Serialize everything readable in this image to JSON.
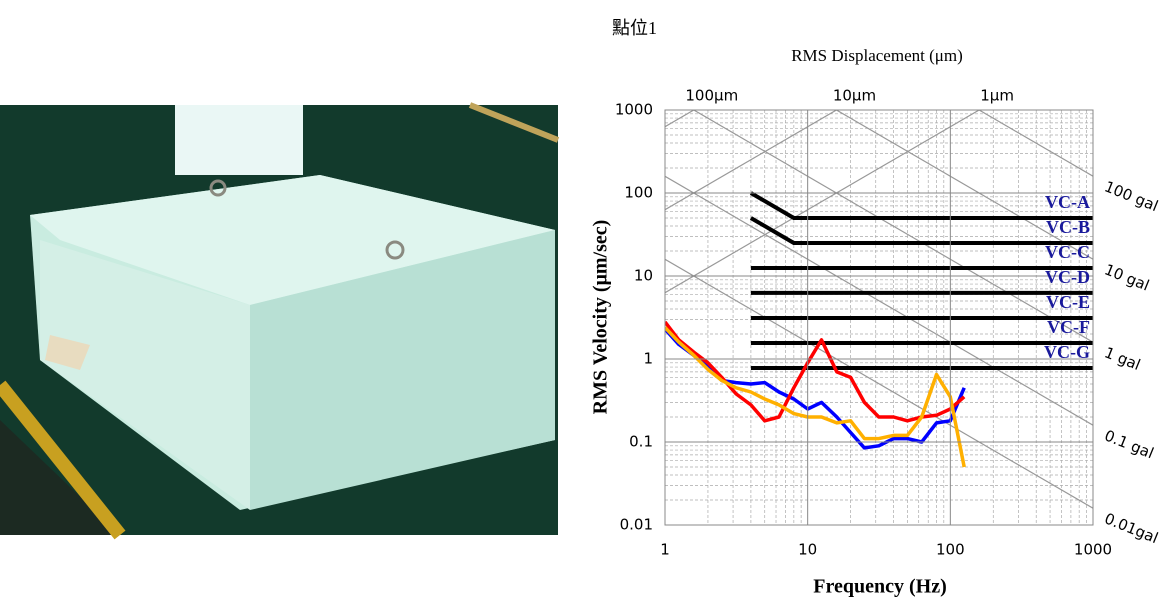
{
  "chart_data": {
    "type": "line",
    "title": "點位1",
    "top_axis_label": "RMS Displacement (μm)",
    "xlabel": "Frequency (Hz)",
    "ylabel": "RMS Velocity (μm/sec)",
    "log_x": true,
    "log_y": true,
    "grid": true,
    "xlim": [
      1,
      1000
    ],
    "ylim": [
      0.01,
      1000
    ],
    "xticks": [
      1,
      10,
      100,
      1000
    ],
    "yticks": [
      0.01,
      0.1,
      1,
      10,
      100,
      1000
    ],
    "displacement_ticks": [
      {
        "value": 100,
        "label": "100μm"
      },
      {
        "value": 10,
        "label": "10μm"
      },
      {
        "value": 1,
        "label": "1μm"
      }
    ],
    "acceleration_ticks": [
      {
        "value": 100,
        "label": "100 gal"
      },
      {
        "value": 10,
        "label": "10 gal"
      },
      {
        "value": 1,
        "label": "1 gal"
      },
      {
        "value": 0.1,
        "label": "0.1 gal"
      },
      {
        "value": 0.01,
        "label": "0.01gal"
      }
    ],
    "criteria": [
      {
        "name": "VC-A",
        "color": "#000000",
        "x": [
          4,
          8,
          1000
        ],
        "values": [
          100,
          50,
          50
        ]
      },
      {
        "name": "VC-B",
        "color": "#000000",
        "x": [
          4,
          8,
          1000
        ],
        "values": [
          50,
          25,
          25
        ]
      },
      {
        "name": "VC-C",
        "color": "#000000",
        "x": [
          4,
          1000
        ],
        "values": [
          12.5,
          12.5
        ]
      },
      {
        "name": "VC-D",
        "color": "#000000",
        "x": [
          4,
          1000
        ],
        "values": [
          6.25,
          6.25
        ]
      },
      {
        "name": "VC-E",
        "color": "#000000",
        "x": [
          4,
          1000
        ],
        "values": [
          3.12,
          3.12
        ]
      },
      {
        "name": "VC-F",
        "color": "#000000",
        "x": [
          4,
          1000
        ],
        "values": [
          1.56,
          1.56
        ]
      },
      {
        "name": "VC-G",
        "color": "#000000",
        "x": [
          4,
          1000
        ],
        "values": [
          0.78,
          0.78
        ]
      }
    ],
    "x": [
      1,
      1.25,
      1.6,
      2,
      2.5,
      3.15,
      4,
      5,
      6.3,
      8,
      10,
      12.5,
      16,
      20,
      25,
      31.5,
      40,
      50,
      63,
      80,
      100,
      125
    ],
    "series": [
      {
        "color": "#0000ff",
        "values": [
          2.3,
          1.5,
          1.1,
          0.8,
          0.55,
          0.52,
          0.5,
          0.52,
          0.4,
          0.33,
          0.25,
          0.3,
          0.2,
          0.13,
          0.085,
          0.09,
          0.11,
          0.11,
          0.1,
          0.17,
          0.18,
          0.45
        ]
      },
      {
        "color": "#ff0000",
        "values": [
          2.8,
          1.7,
          1.2,
          0.9,
          0.6,
          0.38,
          0.28,
          0.18,
          0.2,
          0.45,
          0.9,
          1.7,
          0.7,
          0.6,
          0.3,
          0.2,
          0.2,
          0.18,
          0.2,
          0.21,
          0.25,
          0.35
        ]
      },
      {
        "color": "#ffb000",
        "values": [
          2.4,
          1.6,
          1.1,
          0.75,
          0.55,
          0.45,
          0.4,
          0.33,
          0.28,
          0.22,
          0.2,
          0.2,
          0.17,
          0.18,
          0.11,
          0.11,
          0.12,
          0.12,
          0.2,
          0.65,
          0.35,
          0.05
        ]
      }
    ]
  }
}
